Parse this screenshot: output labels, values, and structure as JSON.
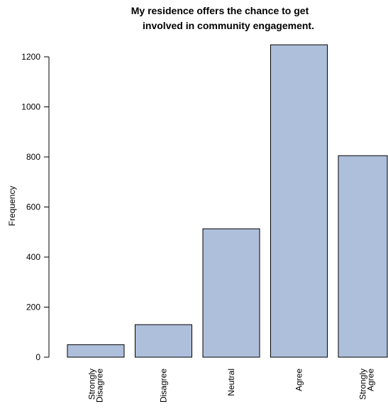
{
  "colors": {
    "bar_fill": "#aebfdb",
    "bar_stroke": "#000000",
    "text": "#000000",
    "background": "#ffffff"
  },
  "chart_data": {
    "type": "bar",
    "title_lines": [
      "My residence offers the chance to get",
      "involved in community engagement."
    ],
    "xlabel": "",
    "ylabel": "Frequency",
    "categories": [
      [
        "Strongly",
        "Disagree"
      ],
      [
        "Disagree"
      ],
      [
        "Neutral"
      ],
      [
        "Agree"
      ],
      [
        "Strongly",
        "Agree"
      ]
    ],
    "values": [
      50,
      130,
      513,
      1248,
      805
    ],
    "ylim": [
      0,
      1250
    ],
    "yticks": [
      0,
      200,
      400,
      600,
      800,
      1000,
      1200
    ],
    "grid": false,
    "legend": "none"
  }
}
